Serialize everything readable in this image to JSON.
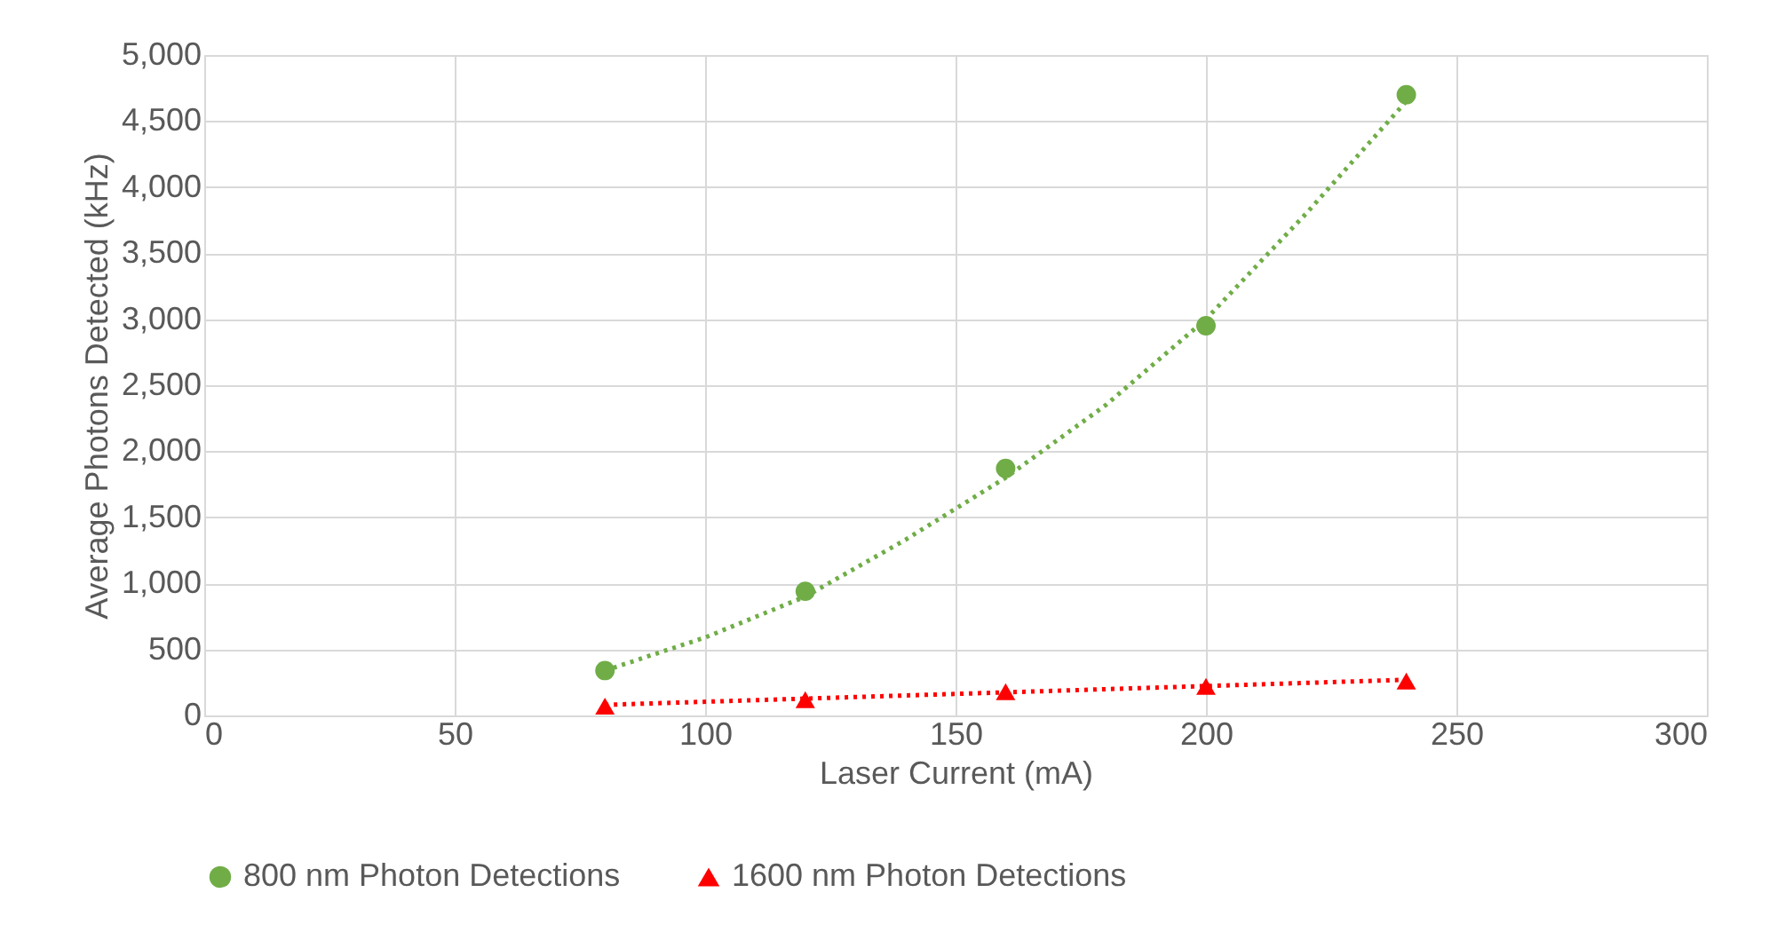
{
  "chart_data": {
    "type": "scatter",
    "xlabel": "Laser Current (mA)",
    "ylabel": "Average Photons Detected (kHz)",
    "xlim": [
      0,
      300
    ],
    "xticks": [
      0,
      50,
      100,
      150,
      200,
      250,
      300
    ],
    "ylim": [
      0,
      5000
    ],
    "yticks": [
      0,
      500,
      {
        "value": 1000,
        "label": "1,000"
      },
      {
        "value": 1500,
        "label": "1,500"
      },
      {
        "value": 2000,
        "label": "2,000"
      },
      {
        "value": 2500,
        "label": "2,500"
      },
      {
        "value": 3000,
        "label": "3,000"
      },
      {
        "value": 3500,
        "label": "3,500"
      },
      {
        "value": 4000,
        "label": "4,000"
      },
      {
        "value": 4500,
        "label": "4,500"
      },
      {
        "value": 5000,
        "label": "5,000"
      }
    ],
    "grid": true,
    "legend": "bottom",
    "series": [
      {
        "type": "line",
        "color": "#70ad47",
        "line_style": "dotted",
        "marker": "none",
        "x": [
          80,
          100,
          120,
          140,
          160,
          180,
          200,
          220,
          240
        ],
        "values": [
          340,
          590,
          900,
          1330,
          1800,
          2350,
          3000,
          3800,
          4650
        ]
      },
      {
        "type": "line",
        "color": "#ff0000",
        "line_style": "dotted",
        "marker": "none",
        "x": [
          80,
          240
        ],
        "values": [
          80,
          270
        ]
      },
      {
        "type": "scatter",
        "name": "800 nm Photon Detections",
        "color": "#70ad47",
        "marker": "circle",
        "x": [
          80,
          120,
          160,
          200,
          240
        ],
        "values": [
          340,
          940,
          1870,
          2950,
          4700
        ]
      },
      {
        "type": "scatter",
        "name": "1600 nm Photon Detections",
        "color": "#ff0000",
        "marker": "triangle",
        "x": [
          80,
          120,
          160,
          200,
          240
        ],
        "values": [
          70,
          120,
          180,
          220,
          260
        ]
      }
    ]
  }
}
